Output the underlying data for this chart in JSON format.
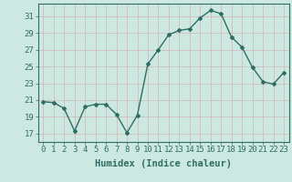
{
  "x": [
    0,
    1,
    2,
    3,
    4,
    5,
    6,
    7,
    8,
    9,
    10,
    11,
    12,
    13,
    14,
    15,
    16,
    17,
    18,
    19,
    20,
    21,
    22,
    23
  ],
  "y": [
    20.8,
    20.7,
    20.0,
    17.3,
    20.2,
    20.5,
    20.5,
    19.3,
    17.1,
    19.2,
    25.3,
    27.0,
    28.8,
    29.3,
    29.5,
    30.8,
    31.7,
    31.3,
    28.5,
    27.3,
    24.9,
    23.2,
    22.9,
    24.3
  ],
  "line_color": "#2e6e65",
  "bg_color": "#b8ddd6",
  "plot_bg_color": "#cce8e0",
  "grid_color": "#e8e8e8",
  "xlabel": "Humidex (Indice chaleur)",
  "yticks": [
    17,
    19,
    21,
    23,
    25,
    27,
    29,
    31
  ],
  "xticks": [
    0,
    1,
    2,
    3,
    4,
    5,
    6,
    7,
    8,
    9,
    10,
    11,
    12,
    13,
    14,
    15,
    16,
    17,
    18,
    19,
    20,
    21,
    22,
    23
  ],
  "ylim": [
    16.0,
    32.5
  ],
  "xlim": [
    -0.5,
    23.5
  ],
  "xlabel_fontsize": 7.5,
  "tick_fontsize": 6.5,
  "marker": "D",
  "marker_size": 2.0,
  "linewidth": 1.0
}
